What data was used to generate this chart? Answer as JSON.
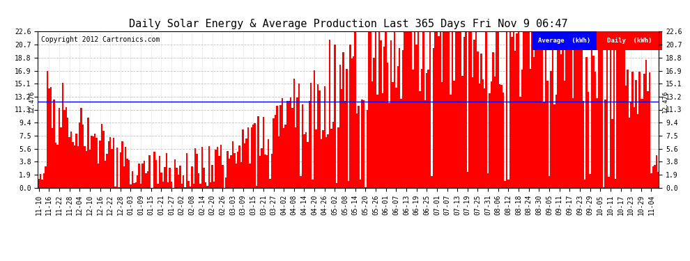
{
  "title": "Daily Solar Energy & Average Production Last 365 Days Fri Nov 9 06:47",
  "copyright": "Copyright 2012 Cartronics.com",
  "average_value": 12.476,
  "average_label": "12.476",
  "ylim": [
    0.0,
    22.6
  ],
  "yticks": [
    0.0,
    1.9,
    3.8,
    5.6,
    7.5,
    9.4,
    11.3,
    13.2,
    15.1,
    16.9,
    18.8,
    20.7,
    22.6
  ],
  "bar_color": "#FF0000",
  "avg_line_color": "#0000FF",
  "background_color": "#FFFFFF",
  "grid_color": "#BBBBBB",
  "legend_avg_bg": "#0000FF",
  "legend_daily_bg": "#FF0000",
  "legend_text_color": "#FFFFFF",
  "title_fontsize": 11,
  "copyright_fontsize": 7,
  "tick_fontsize": 7,
  "num_bars": 365,
  "x_tick_labels": [
    "11-10",
    "11-16",
    "11-22",
    "11-28",
    "12-04",
    "12-10",
    "12-16",
    "12-22",
    "12-28",
    "01-03",
    "01-09",
    "01-15",
    "01-21",
    "01-27",
    "02-02",
    "02-08",
    "02-14",
    "02-20",
    "02-26",
    "03-03",
    "03-09",
    "03-15",
    "03-21",
    "03-27",
    "04-02",
    "04-08",
    "04-14",
    "04-20",
    "04-26",
    "05-02",
    "05-08",
    "05-14",
    "05-20",
    "05-26",
    "06-01",
    "06-07",
    "06-13",
    "06-19",
    "06-25",
    "07-01",
    "07-07",
    "07-13",
    "07-19",
    "07-25",
    "07-31",
    "08-06",
    "08-12",
    "08-18",
    "08-24",
    "08-30",
    "09-05",
    "09-11",
    "09-17",
    "09-23",
    "09-29",
    "10-05",
    "10-11",
    "10-17",
    "10-23",
    "10-29",
    "11-04"
  ],
  "x_tick_positions": [
    0,
    6,
    12,
    18,
    24,
    30,
    36,
    42,
    48,
    54,
    60,
    66,
    72,
    78,
    84,
    90,
    96,
    102,
    108,
    114,
    120,
    126,
    132,
    138,
    144,
    150,
    156,
    162,
    168,
    174,
    180,
    186,
    192,
    198,
    204,
    210,
    216,
    222,
    228,
    234,
    240,
    246,
    252,
    258,
    264,
    270,
    276,
    282,
    288,
    294,
    300,
    306,
    312,
    318,
    324,
    330,
    336,
    342,
    348,
    354,
    360
  ]
}
